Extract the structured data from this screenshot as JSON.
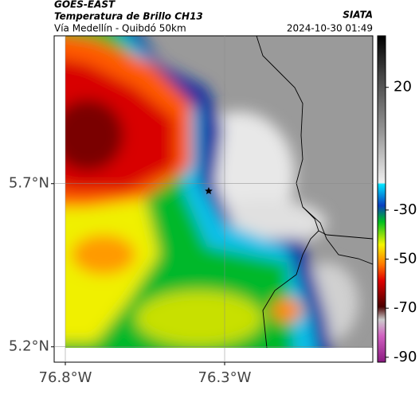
{
  "header": {
    "title": "GOES-EAST",
    "subtitle": "Temperatura de Brillo CH13",
    "route": "Vía Medellín - Quibdó 50km",
    "agency": "SIATA",
    "datetime": "2024-10-30 01:49"
  },
  "map": {
    "xlim": [
      -76.835,
      -75.835
    ],
    "ylim": [
      5.153,
      6.153
    ],
    "xticks": [
      {
        "value": -76.8,
        "label": "76.8°W"
      },
      {
        "value": -76.3,
        "label": "76.3°W"
      }
    ],
    "yticks": [
      {
        "value": 5.7,
        "label": "5.7°N"
      },
      {
        "value": 5.2,
        "label": "5.2°N"
      }
    ]
  },
  "colorbar": {
    "range": [
      -92,
      41
    ],
    "ticks": [
      20,
      -30,
      -50,
      -70,
      -90
    ]
  }
}
